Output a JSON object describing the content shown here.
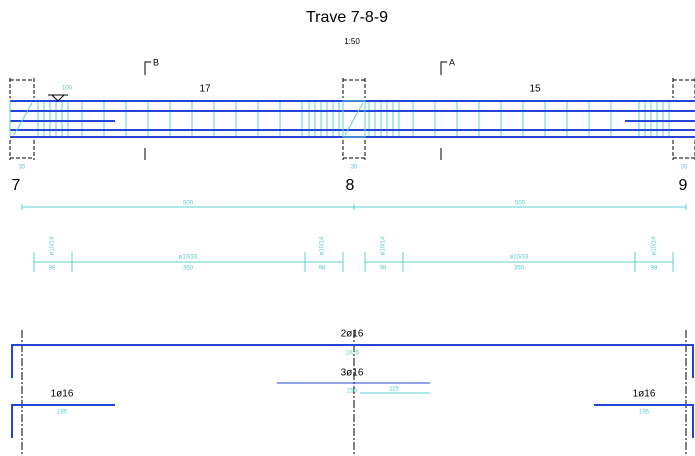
{
  "header": {
    "title": "Trave 7-8-9",
    "scale": "1:50"
  },
  "sections": [
    {
      "label": "B"
    },
    {
      "label": "A"
    }
  ],
  "spans": [
    {
      "stirrups": "17"
    },
    {
      "stirrups": "15"
    }
  ],
  "supports": [
    {
      "label": "7",
      "width": "35"
    },
    {
      "label": "8",
      "width": "35"
    },
    {
      "label": "9",
      "width": "35"
    }
  ],
  "span_lengths": [
    "500",
    "500"
  ],
  "stirrup_details": [
    {
      "end_bar": "ø10/14",
      "end_len": "98",
      "mid_bar": "ø10/33",
      "mid_len": "350"
    },
    {
      "end_bar": "ø10/14",
      "end_len": "98",
      "mid_bar": "ø10/33",
      "mid_len": "350"
    }
  ],
  "rebars": {
    "top": {
      "label": "2ø16",
      "length": "1025"
    },
    "middle": {
      "label": "3ø16",
      "length": "250",
      "extension": "115"
    },
    "left": {
      "label": "1ø16",
      "length": "195"
    },
    "right": {
      "label": "1ø16",
      "length": "195"
    }
  }
}
